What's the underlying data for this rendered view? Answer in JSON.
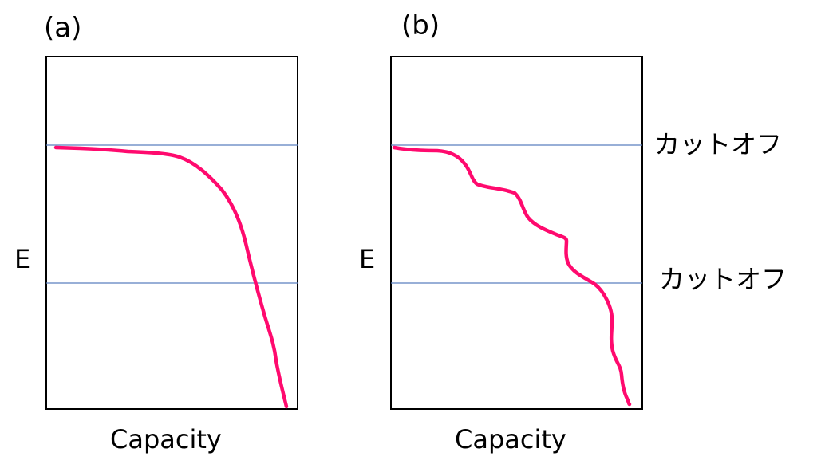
{
  "panels": [
    {
      "label": "(a)",
      "y_axis_label": "E",
      "x_axis_label": "Capacity",
      "cutoff_labels": []
    },
    {
      "label": "(b)",
      "y_axis_label": "E",
      "x_axis_label": "Capacity",
      "cutoff_labels": [
        "カットオフ",
        "カットオフ"
      ]
    }
  ],
  "colors": {
    "curve": "#ff0a6e",
    "cutoff_line": "#5b7fbf",
    "frame": "#000000"
  }
}
